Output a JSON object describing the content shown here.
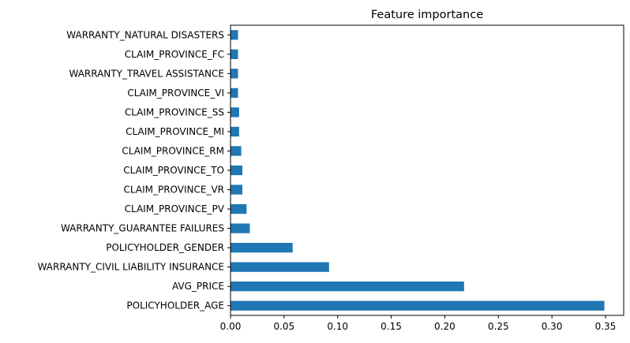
{
  "chart_data": {
    "type": "bar",
    "orientation": "horizontal",
    "title": "Feature importance",
    "xlabel": "",
    "ylabel": "",
    "xlim": [
      0,
      0.367
    ],
    "x_ticks": [
      0.0,
      0.05,
      0.1,
      0.15,
      0.2,
      0.25,
      0.3,
      0.35
    ],
    "x_tick_labels": [
      "0.00",
      "0.05",
      "0.10",
      "0.15",
      "0.20",
      "0.25",
      "0.30",
      "0.35"
    ],
    "grid": false,
    "bar_color": "#1f77b4",
    "categories": [
      "POLICYHOLDER_AGE",
      "AVG_PRICE",
      "WARRANTY_CIVIL LIABILITY INSURANCE",
      "POLICYHOLDER_GENDER",
      "WARRANTY_GUARANTEE FAILURES",
      "CLAIM_PROVINCE_PV",
      "CLAIM_PROVINCE_VR",
      "CLAIM_PROVINCE_TO",
      "CLAIM_PROVINCE_RM",
      "CLAIM_PROVINCE_MI",
      "CLAIM_PROVINCE_SS",
      "CLAIM_PROVINCE_VI",
      "WARRANTY_TRAVEL ASSISTANCE",
      "CLAIM_PROVINCE_FC",
      "WARRANTY_NATURAL DISASTERS"
    ],
    "values": [
      0.349,
      0.218,
      0.092,
      0.058,
      0.018,
      0.015,
      0.011,
      0.011,
      0.01,
      0.008,
      0.008,
      0.007,
      0.007,
      0.007,
      0.007
    ]
  }
}
